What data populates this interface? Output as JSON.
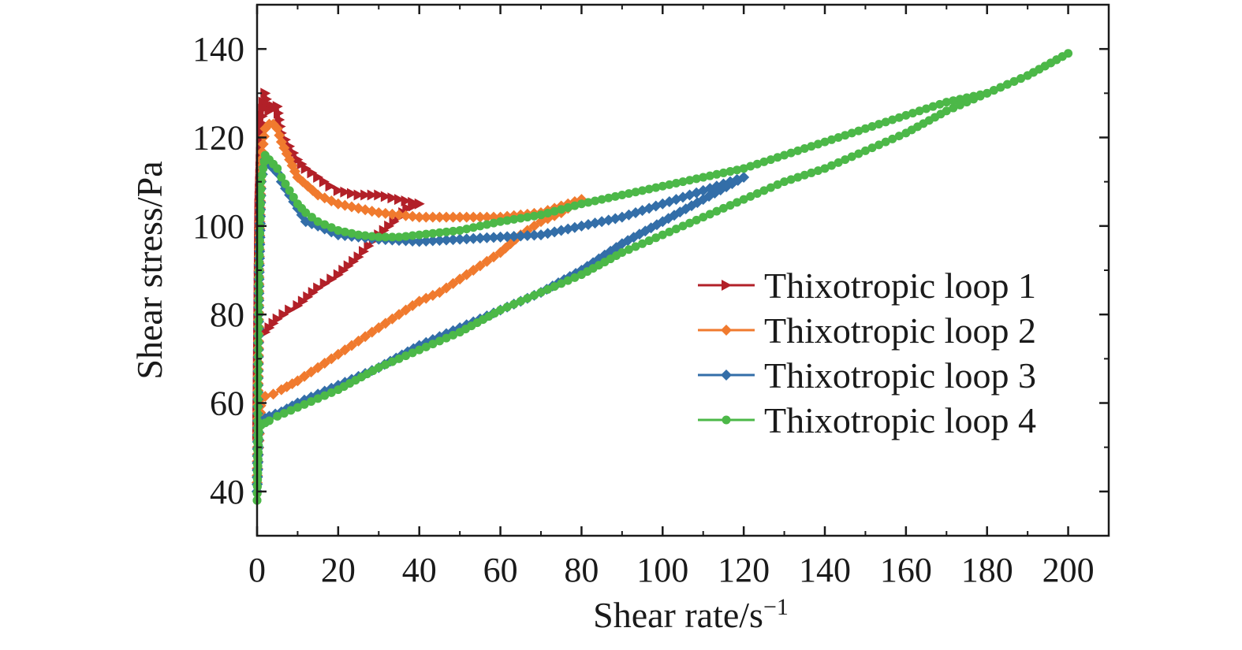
{
  "chart_data": {
    "type": "line",
    "xlabel": "Shear rate/s",
    "xlabel_superscript": "−1",
    "ylabel": "Shear stress/Pa",
    "xlim": [
      0,
      210
    ],
    "ylim": [
      30,
      150
    ],
    "x_ticks": [
      0,
      20,
      40,
      60,
      80,
      100,
      120,
      140,
      160,
      180,
      200
    ],
    "x_tick_labels": [
      "0",
      "20",
      "40",
      "60",
      "80",
      "100",
      "120",
      "140",
      "160",
      "180",
      "200"
    ],
    "y_ticks": [
      40,
      60,
      80,
      100,
      120,
      140
    ],
    "y_tick_labels": [
      "40",
      "60",
      "80",
      "100",
      "120",
      "140"
    ],
    "grid": false,
    "legend_position": "right",
    "series": [
      {
        "name": "Thixotropic loop 1",
        "color": "#b22028",
        "marker": "triangle-right",
        "x": [
          0,
          0.5,
          1,
          1.5,
          2,
          3,
          4,
          5,
          6,
          8,
          10,
          12,
          15,
          18,
          20,
          25,
          30,
          35,
          40,
          37,
          35,
          30,
          25,
          20,
          15,
          10,
          8,
          5,
          3,
          2,
          1,
          0.5,
          0
        ],
        "y": [
          53,
          105,
          120,
          128,
          130,
          126,
          127,
          127,
          121,
          118,
          115,
          113,
          111,
          109,
          108,
          107,
          107,
          106,
          105,
          104,
          102,
          98,
          93,
          89,
          86,
          82,
          81,
          79,
          77,
          76,
          76,
          77,
          53
        ]
      },
      {
        "name": "Thixotropic loop 2",
        "color": "#f07a2e",
        "marker": "diamond",
        "x": [
          0,
          0.5,
          1,
          2,
          3,
          4,
          5,
          6,
          8,
          10,
          15,
          20,
          25,
          30,
          35,
          40,
          50,
          60,
          70,
          80,
          75,
          70,
          65,
          60,
          55,
          50,
          45,
          40,
          35,
          30,
          25,
          20,
          15,
          10,
          6,
          4,
          2,
          1,
          0
        ],
        "y": [
          42,
          90,
          115,
          122,
          123,
          123,
          122,
          119,
          115,
          111,
          107,
          105,
          104,
          103,
          102.5,
          102,
          102,
          102,
          103,
          106,
          103,
          101,
          98,
          94,
          91,
          88,
          85,
          83,
          80,
          77,
          74,
          71,
          68,
          65,
          63,
          62,
          61.5,
          61,
          42
        ]
      },
      {
        "name": "Thixotropic loop 3",
        "color": "#336ea8",
        "marker": "diamond",
        "x": [
          0,
          0.5,
          1,
          2,
          3,
          4,
          5,
          6,
          8,
          10,
          12,
          15,
          20,
          25,
          30,
          40,
          50,
          60,
          70,
          80,
          90,
          100,
          110,
          120,
          110,
          100,
          90,
          80,
          70,
          60,
          50,
          40,
          30,
          25,
          20,
          15,
          10,
          6,
          3,
          2,
          1,
          0.5,
          0
        ],
        "y": [
          40,
          88,
          110,
          115,
          114,
          113,
          112,
          110,
          107,
          104,
          101,
          100,
          98,
          97.5,
          97,
          96.5,
          97,
          97.5,
          98,
          100,
          102,
          105,
          108,
          111,
          106,
          101,
          96,
          90,
          85,
          81,
          77,
          73,
          68,
          66,
          64,
          62,
          60,
          58,
          57,
          56.5,
          56,
          55,
          40
        ]
      },
      {
        "name": "Thixotropic loop 4",
        "color": "#4cb848",
        "marker": "circle",
        "x": [
          0,
          0.5,
          1,
          2,
          3,
          4,
          5,
          6,
          8,
          10,
          12,
          15,
          20,
          25,
          30,
          35,
          40,
          45,
          50,
          55,
          60,
          70,
          80,
          90,
          100,
          110,
          120,
          130,
          140,
          150,
          160,
          170,
          180,
          190,
          200,
          190,
          180,
          170,
          160,
          150,
          140,
          130,
          120,
          110,
          100,
          90,
          80,
          70,
          60,
          50,
          40,
          30,
          20,
          10,
          5,
          3,
          2,
          1,
          0.5,
          0
        ],
        "y": [
          38,
          90,
          110,
          116,
          115,
          114,
          113,
          111,
          108,
          105,
          103,
          101,
          99,
          98,
          97.5,
          97.5,
          98,
          98.5,
          99,
          100,
          101,
          102.5,
          105,
          107,
          109,
          111,
          113,
          116,
          119,
          122,
          125,
          128,
          130,
          134,
          139,
          134,
          130,
          126,
          121,
          117,
          113,
          110,
          106,
          102,
          98,
          94,
          89,
          85,
          81,
          76,
          72,
          68,
          63,
          59,
          57,
          56,
          55.5,
          55,
          55,
          38
        ]
      }
    ]
  }
}
